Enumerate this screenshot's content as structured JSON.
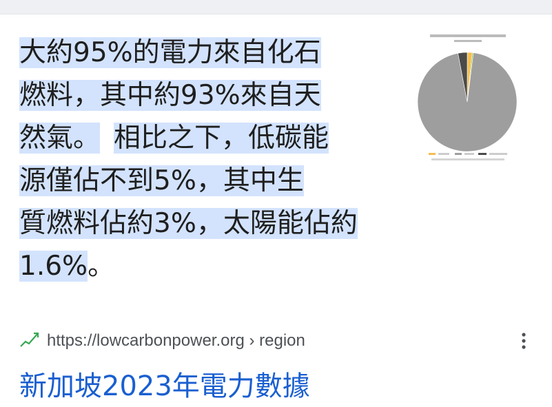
{
  "snippet": {
    "lines": [
      {
        "hl": "大約95%的電力來自化石",
        "rest": ""
      },
      {
        "hl": "燃料，其中約93%來自天",
        "rest": ""
      },
      {
        "hl": "然氣。",
        "gap": " ",
        "hl2": "相比之下，低碳能"
      },
      {
        "hl": "源僅佔不到5%，其中生",
        "rest": ""
      },
      {
        "hl": "質燃料佔約3%，太陽能佔約",
        "rest": ""
      },
      {
        "hl": "1.6%",
        "rest": "。"
      }
    ]
  },
  "thumbnail": {
    "chart_data": {
      "type": "pie",
      "values": [
        1.6,
        0.4,
        95,
        3
      ],
      "colors": [
        "#f6bd4f",
        "#8bc34a",
        "#9e9e9e",
        "#4a4a4a"
      ]
    }
  },
  "result": {
    "favicon": "trend-line-icon",
    "favicon_color": "#34a853",
    "url": "https://lowcarbonpower.org › region",
    "title": "新加坡2023年電力數據",
    "title_color": "#1a5fd0"
  }
}
